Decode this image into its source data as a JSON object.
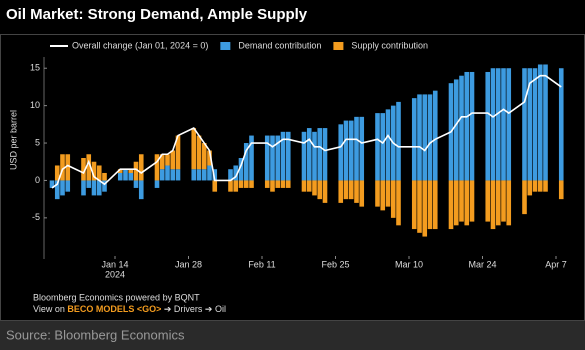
{
  "chart_data": {
    "type": "bar",
    "title": "Oil Market: Strong Demand, Ample Supply",
    "ylabel": "USD per barrel",
    "x": [
      "2024-01-02",
      "2024-01-03",
      "2024-01-04",
      "2024-01-05",
      "2024-01-08",
      "2024-01-09",
      "2024-01-10",
      "2024-01-11",
      "2024-01-12",
      "2024-01-15",
      "2024-01-16",
      "2024-01-17",
      "2024-01-18",
      "2024-01-19",
      "2024-01-22",
      "2024-01-23",
      "2024-01-24",
      "2024-01-25",
      "2024-01-26",
      "2024-01-29",
      "2024-01-30",
      "2024-01-31",
      "2024-02-01",
      "2024-02-02",
      "2024-02-05",
      "2024-02-06",
      "2024-02-07",
      "2024-02-08",
      "2024-02-09",
      "2024-02-12",
      "2024-02-13",
      "2024-02-14",
      "2024-02-15",
      "2024-02-16",
      "2024-02-19",
      "2024-02-20",
      "2024-02-21",
      "2024-02-22",
      "2024-02-23",
      "2024-02-26",
      "2024-02-27",
      "2024-02-28",
      "2024-02-29",
      "2024-03-01",
      "2024-03-04",
      "2024-03-05",
      "2024-03-06",
      "2024-03-07",
      "2024-03-08",
      "2024-03-11",
      "2024-03-12",
      "2024-03-13",
      "2024-03-14",
      "2024-03-15",
      "2024-03-18",
      "2024-03-19",
      "2024-03-20",
      "2024-03-21",
      "2024-03-22",
      "2024-03-25",
      "2024-03-26",
      "2024-03-27",
      "2024-03-28",
      "2024-03-29",
      "2024-04-01",
      "2024-04-02",
      "2024-04-03",
      "2024-04-04",
      "2024-04-05",
      "2024-04-08"
    ],
    "series": [
      {
        "name": "Demand contribution",
        "color": "#3d9be0",
        "values": [
          -1,
          -2.5,
          -2,
          -1.5,
          -2,
          -1,
          -2,
          -2,
          -1.5,
          1,
          1.5,
          1,
          -1,
          -2.5,
          -1,
          1.5,
          2,
          1.5,
          1.5,
          1.5,
          1.5,
          1.5,
          2,
          1.5,
          1.5,
          2,
          3,
          5,
          6,
          6,
          6,
          6,
          6.5,
          6.5,
          6.5,
          7,
          6.5,
          7,
          7,
          7.5,
          8,
          8,
          8.5,
          8.5,
          9,
          9,
          9.5,
          10,
          10.5,
          11,
          11.5,
          11.5,
          11.5,
          12,
          13,
          13.5,
          14,
          14.5,
          14.5,
          14.5,
          15,
          15,
          15,
          15,
          15,
          15,
          15,
          15.5,
          15.5,
          15
        ]
      },
      {
        "name": "Supply contribution",
        "color": "#f39c1f",
        "values": [
          0,
          2,
          3.5,
          3.5,
          3,
          3.5,
          2.5,
          2,
          1,
          0.5,
          0,
          0.5,
          2.5,
          3.5,
          3.5,
          2,
          1.5,
          2.5,
          4.5,
          5.5,
          4.5,
          3.5,
          2,
          -1.5,
          -1.5,
          -1.5,
          -1,
          -1,
          -1,
          -1,
          -1.5,
          -1,
          -1,
          -1,
          -1.5,
          -1.5,
          -2,
          -2.5,
          -3,
          -3,
          -2.5,
          -2.5,
          -3,
          -3.5,
          -3.5,
          -4,
          -3.5,
          -5,
          -6,
          -6.5,
          -7,
          -7.5,
          -6.5,
          -6.5,
          -6.5,
          -6,
          -5.5,
          -6,
          -5.5,
          -5.5,
          -6.5,
          -6,
          -5.5,
          -6,
          -4.5,
          -2,
          -1.5,
          -1.5,
          -1.5,
          -2.5
        ]
      },
      {
        "name": "Overall change (Jan 01, 2024 = 0)",
        "color": "#ffffff",
        "type": "line",
        "values": [
          -1,
          -0.5,
          1.5,
          2,
          1,
          2.5,
          0.5,
          0,
          -0.5,
          1.5,
          1.5,
          1.5,
          1.5,
          1,
          2.5,
          3.5,
          3.5,
          4,
          6,
          7,
          6,
          5,
          4,
          0,
          0,
          0.5,
          2,
          4,
          5,
          5,
          4.5,
          5,
          5.5,
          5.5,
          5,
          5.5,
          4.5,
          4.5,
          4,
          4.5,
          5.5,
          5.5,
          5.5,
          5,
          5.5,
          5,
          6,
          5,
          4.5,
          4.5,
          4.5,
          4,
          5,
          5.5,
          6.5,
          7.5,
          8.5,
          8.5,
          9,
          9,
          8.5,
          9,
          9.5,
          9,
          10.5,
          13,
          13.5,
          14,
          14,
          12.5
        ]
      }
    ],
    "ylim": [
      -10.5,
      16.5
    ],
    "yticks": [
      -5,
      0,
      5,
      10,
      15
    ],
    "xticks": [
      {
        "value": "2024-01-14",
        "label": "Jan 14"
      },
      {
        "value": "2024-01-28",
        "label": "Jan 28"
      },
      {
        "value": "2024-02-11",
        "label": "Feb 11"
      },
      {
        "value": "2024-02-25",
        "label": "Feb 25"
      },
      {
        "value": "2024-03-10",
        "label": "Mar 10"
      },
      {
        "value": "2024-03-24",
        "label": "Mar 24"
      },
      {
        "value": "2024-04-07",
        "label": "Apr 7"
      }
    ],
    "xtick_year": "2024",
    "grid": false
  },
  "footer": {
    "line1": "Bloomberg Economics powered by BQNT",
    "line2_prefix": "View on ",
    "line2_highlight": "BECO MODELS <GO>",
    "line2_suffix": " ➔ Drivers ➔ Oil"
  },
  "source": "Source: Bloomberg Economics"
}
